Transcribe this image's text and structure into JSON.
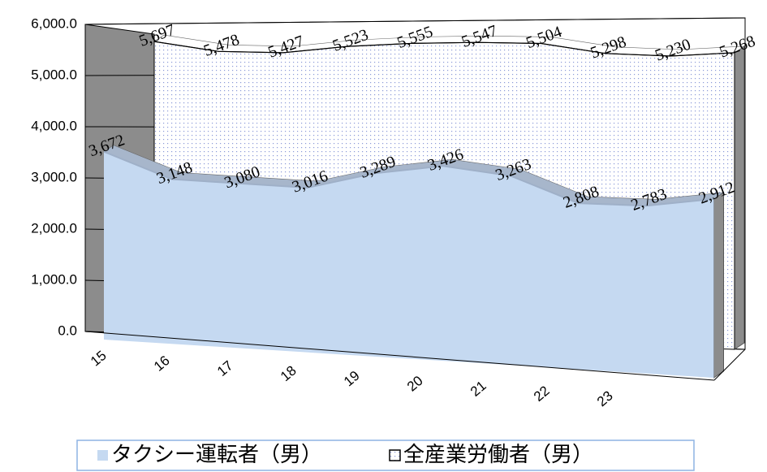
{
  "chart_data": {
    "type": "area3d",
    "categories": [
      "15",
      "16",
      "17",
      "18",
      "19",
      "20",
      "21",
      "22",
      "23",
      null
    ],
    "series": [
      {
        "name": "タクシー運転者（男）",
        "color": "#c5d9f1",
        "values": [
          3672,
          3148,
          3080,
          3016,
          3289,
          3426,
          3263,
          2808,
          2783,
          2912
        ],
        "value_labels": [
          "3,672",
          "3,148",
          "3,080",
          "3,016",
          "3,289",
          "3,426",
          "3,263",
          "2,808",
          "2,783",
          "2,912"
        ]
      },
      {
        "name": "全産業労働者（男）",
        "color": "#ffffff",
        "values": [
          5697,
          5478,
          5427,
          5523,
          5555,
          5547,
          5504,
          5298,
          5230,
          5268
        ],
        "value_labels": [
          "5,697",
          "5,478",
          "5,427",
          "5,523",
          "5,555",
          "5,547",
          "5,504",
          "5,298",
          "5,230",
          "5,268"
        ]
      }
    ],
    "ylim": [
      0,
      6000
    ],
    "yticks": [
      {
        "value": 0,
        "label": "0.0"
      },
      {
        "value": 1000,
        "label": "1,000.0"
      },
      {
        "value": 2000,
        "label": "2,000.0"
      },
      {
        "value": 3000,
        "label": "3,000.0"
      },
      {
        "value": 4000,
        "label": "4,000.0"
      },
      {
        "value": 5000,
        "label": "5,000.0"
      },
      {
        "value": 6000,
        "label": "6,000.0"
      }
    ],
    "grid": true,
    "legend": "bottom"
  }
}
